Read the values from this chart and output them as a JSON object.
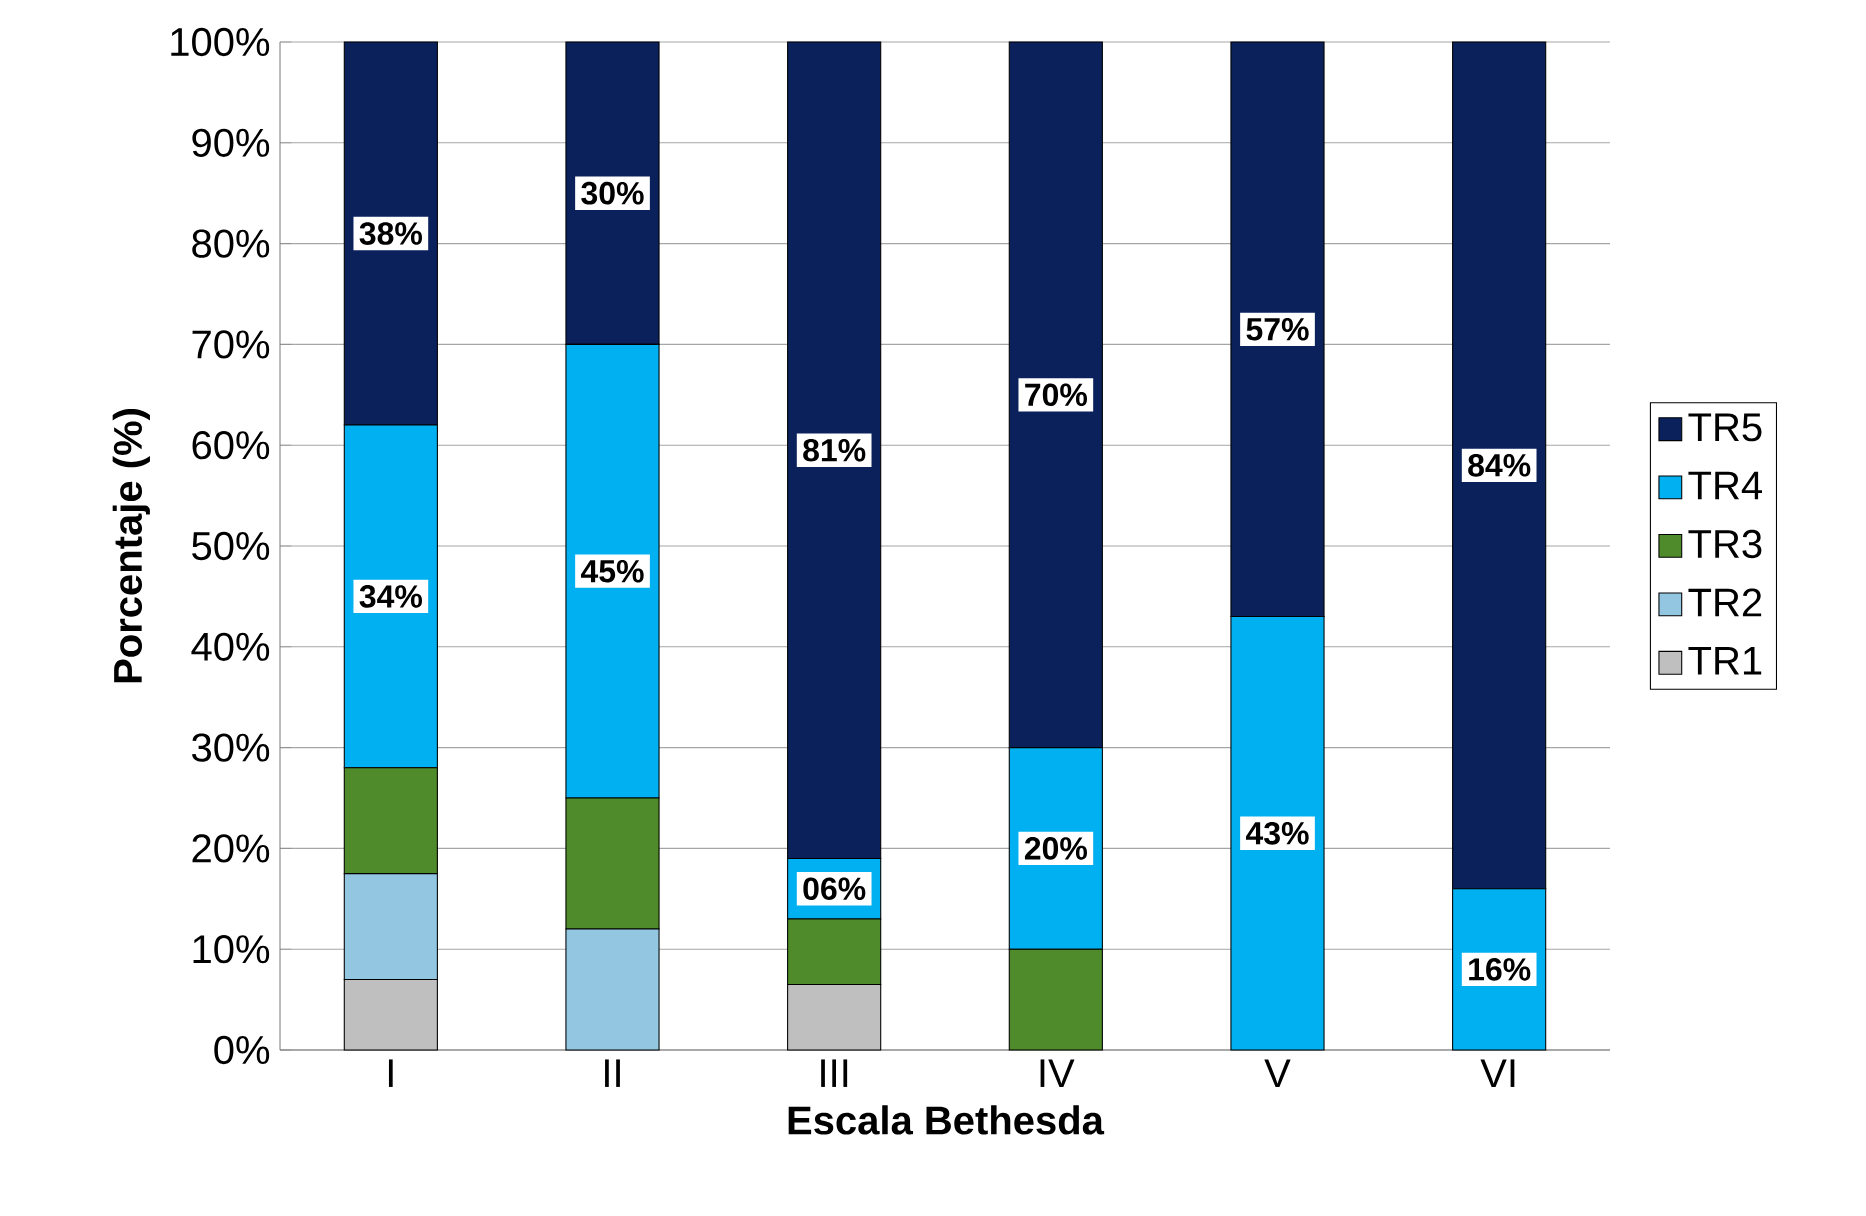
{
  "chart_data": {
    "type": "bar",
    "stacked": true,
    "xlabel": "Escala Bethesda",
    "ylabel": "Porcentaje (%)",
    "categories": [
      "I",
      "II",
      "III",
      "IV",
      "V",
      "VI"
    ],
    "series": [
      {
        "name": "TR1",
        "color": "#bfbfbf",
        "values": [
          7,
          0,
          6.5,
          0,
          0,
          0
        ]
      },
      {
        "name": "TR2",
        "color": "#93c6e0",
        "values": [
          10.5,
          12,
          0,
          0,
          0,
          0
        ]
      },
      {
        "name": "TR3",
        "color": "#4f8a2b",
        "values": [
          10.5,
          13,
          6.5,
          10,
          0,
          0
        ]
      },
      {
        "name": "TR4",
        "color": "#00b0f0",
        "values": [
          34,
          45,
          6,
          20,
          43,
          16
        ],
        "value_labels": [
          "34%",
          "45%",
          "06%",
          "20%",
          "43%",
          "16%"
        ]
      },
      {
        "name": "TR5",
        "color": "#0a215c",
        "values": [
          38,
          30,
          81,
          70,
          57,
          84
        ],
        "value_labels": [
          "38%",
          "30%",
          "81%",
          "70%",
          "57%",
          "84%"
        ]
      }
    ],
    "ylim": [
      0,
      100
    ],
    "yticks": [
      {
        "value": 0,
        "label": "0%"
      },
      {
        "value": 10,
        "label": "10%"
      },
      {
        "value": 20,
        "label": "20%"
      },
      {
        "value": 30,
        "label": "30%"
      },
      {
        "value": 40,
        "label": "40%"
      },
      {
        "value": 50,
        "label": "50%"
      },
      {
        "value": 60,
        "label": "60%"
      },
      {
        "value": 70,
        "label": "70%"
      },
      {
        "value": 80,
        "label": "80%"
      },
      {
        "value": 90,
        "label": "90%"
      },
      {
        "value": 100,
        "label": "100%"
      }
    ],
    "grid": "y",
    "legend": "right"
  }
}
